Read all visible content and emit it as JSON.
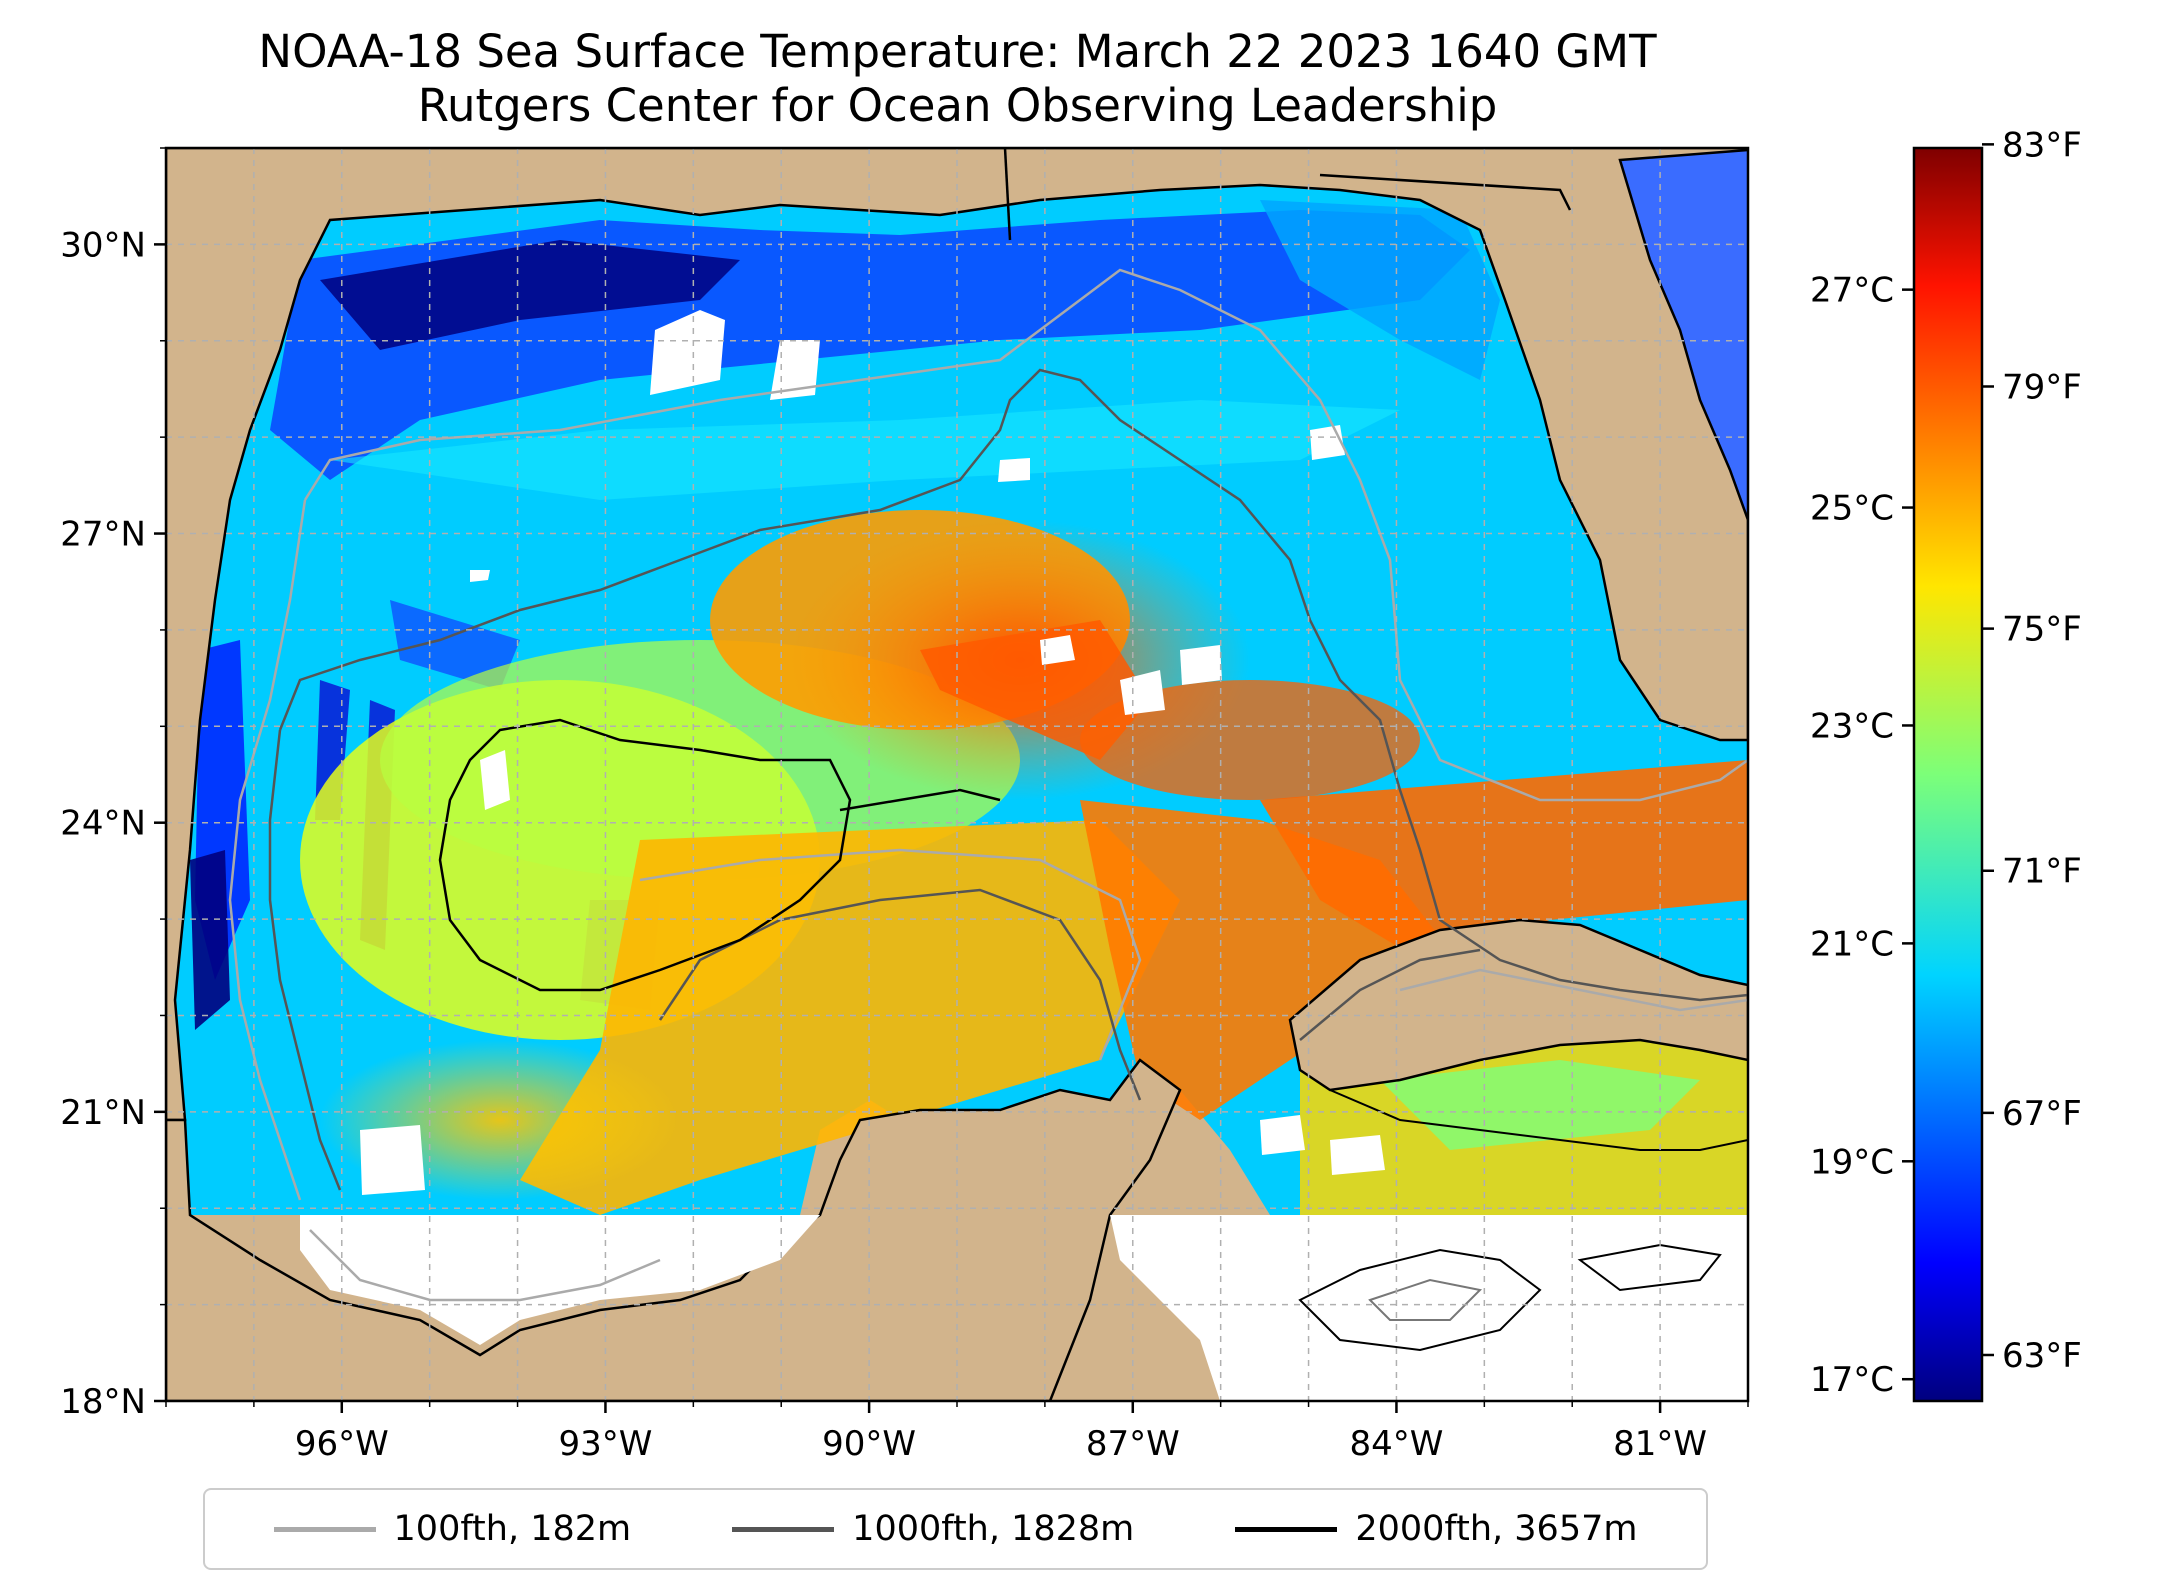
{
  "title": {
    "line1": "NOAA-18 Sea Surface Temperature: March 22 2023 1640 GMT",
    "line2": "Rutgers Center for Ocean Observing Leadership"
  },
  "map": {
    "lon_range": [
      -98.0,
      -80.0
    ],
    "lat_range": [
      18.0,
      31.0
    ],
    "lon_ticks": [
      {
        "value": -96,
        "label": "96°W"
      },
      {
        "value": -93,
        "label": "93°W"
      },
      {
        "value": -90,
        "label": "90°W"
      },
      {
        "value": -87,
        "label": "87°W"
      },
      {
        "value": -84,
        "label": "84°W"
      },
      {
        "value": -81,
        "label": "81°W"
      }
    ],
    "lat_ticks": [
      {
        "value": 18,
        "label": "18°N"
      },
      {
        "value": 21,
        "label": "21°N"
      },
      {
        "value": 24,
        "label": "24°N"
      },
      {
        "value": 27,
        "label": "27°N"
      },
      {
        "value": 30,
        "label": "30°N"
      }
    ],
    "gridlines": true,
    "land_color": "#d2b48c",
    "no_data_color": "#ffffff"
  },
  "colorbar": {
    "colormap": "jet",
    "celsius_range": [
      16.8,
      28.3
    ],
    "celsius_ticks": [
      {
        "value": 17,
        "label": "17°C"
      },
      {
        "value": 19,
        "label": "19°C"
      },
      {
        "value": 21,
        "label": "21°C"
      },
      {
        "value": 23,
        "label": "23°C"
      },
      {
        "value": 25,
        "label": "25°C"
      },
      {
        "value": 27,
        "label": "27°C"
      }
    ],
    "fahrenheit_ticks": [
      {
        "value": 63,
        "label": "63°F"
      },
      {
        "value": 67,
        "label": "67°F"
      },
      {
        "value": 71,
        "label": "71°F"
      },
      {
        "value": 75,
        "label": "75°F"
      },
      {
        "value": 79,
        "label": "79°F"
      },
      {
        "value": 83,
        "label": "83°F"
      }
    ]
  },
  "legend": {
    "placement": "bottom",
    "items": [
      {
        "label": "100fth, 182m",
        "color": "#aaaaaa"
      },
      {
        "label": "1000fth, 1828m",
        "color": "#555555"
      },
      {
        "label": "2000fth, 3657m",
        "color": "#000000"
      }
    ]
  }
}
